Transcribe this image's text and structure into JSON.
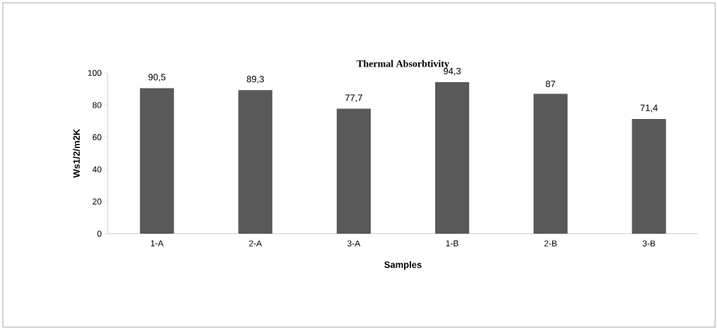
{
  "chart_data": {
    "type": "bar",
    "title": "Thermal Absorbtivity",
    "xlabel": "Samples",
    "ylabel": "Ws1/2/m2K",
    "categories": [
      "1-A",
      "2-A",
      "3-A",
      "1-B",
      "2-B",
      "3-B"
    ],
    "values": [
      90.5,
      89.3,
      77.7,
      94.3,
      87,
      71.4
    ],
    "value_labels": [
      "90,5",
      "89,3",
      "77,7",
      "94,3",
      "87",
      "71,4"
    ],
    "color": "#595959",
    "ylim": [
      0,
      100
    ],
    "yticks": [
      0,
      20,
      40,
      60,
      80,
      100
    ],
    "grid": false
  }
}
